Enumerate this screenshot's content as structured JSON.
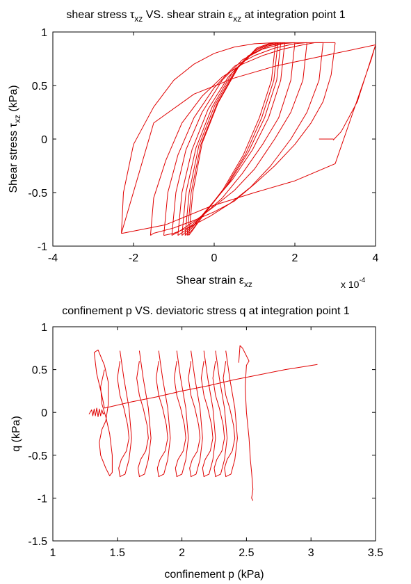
{
  "chart_data": [
    {
      "type": "line",
      "title": {
        "text": "shear stress τ",
        "sub": "xz",
        "mid": " VS. shear strain ε",
        "sub2": "xz",
        "tail": " at integration point 1"
      },
      "xlabel": {
        "text": "Shear strain ε",
        "sub": "xz"
      },
      "ylabel": {
        "text": "Shear stress τ",
        "sub": "xz",
        "tail": " (kPa)"
      },
      "xlim": [
        -4,
        4
      ],
      "ylim": [
        -1,
        1
      ],
      "xticks": [
        -4,
        -2,
        0,
        2,
        4
      ],
      "xtick_labels": [
        "-4",
        "-2",
        "0",
        "2",
        "4"
      ],
      "yticks": [
        -1,
        -0.5,
        0,
        0.5,
        1
      ],
      "ytick_labels": [
        "-1",
        "-0.5",
        "0",
        "0.5",
        "1"
      ],
      "x_multiplier": {
        "text": "x 10",
        "exp": "-4"
      },
      "grid": false,
      "legend": "none",
      "line_color": "#e00000",
      "series": [
        {
          "x": [
            2.72,
            2.95,
            2.85,
            2.6
          ],
          "y": [
            0.0,
            0.0,
            0.0,
            0.0
          ]
        },
        {
          "x": [
            2.95,
            3.15,
            3.55,
            4.0,
            3.0,
            1.5,
            0.5,
            -0.5,
            -1.5,
            -2.3,
            -2.27,
            -1.2,
            -0.1,
            1.0,
            2.0,
            3.0,
            3.9,
            4.0
          ],
          "y": [
            -0.01,
            0.07,
            0.35,
            0.88,
            0.8,
            0.68,
            0.57,
            0.42,
            0.15,
            -0.88,
            -0.88,
            -0.8,
            -0.63,
            -0.5,
            -0.39,
            -0.23,
            0.75,
            0.88
          ]
        },
        {
          "x": [
            -2.3,
            -2.25,
            -2.0,
            -1.5,
            -1.0,
            -0.5,
            0.0,
            0.5,
            1.0,
            1.5,
            2.0,
            2.5,
            3.0
          ],
          "y": [
            -0.88,
            -0.5,
            -0.05,
            0.3,
            0.55,
            0.7,
            0.8,
            0.86,
            0.89,
            0.9,
            0.9,
            0.9,
            0.9
          ]
        },
        {
          "x": [
            3.0,
            2.9,
            2.7,
            2.4,
            2.0,
            1.5,
            1.0,
            0.5,
            0.0,
            -0.5,
            -1.0,
            -1.5,
            -1.58
          ],
          "y": [
            0.9,
            0.6,
            0.35,
            0.15,
            -0.05,
            -0.25,
            -0.42,
            -0.58,
            -0.68,
            -0.76,
            -0.83,
            -0.88,
            -0.9
          ]
        },
        {
          "x": [
            -1.58,
            -1.5,
            -1.2,
            -0.8,
            -0.3,
            0.2,
            0.7,
            1.2,
            1.7,
            2.2,
            2.5,
            2.7
          ],
          "y": [
            -0.9,
            -0.55,
            -0.2,
            0.15,
            0.4,
            0.58,
            0.7,
            0.78,
            0.84,
            0.88,
            0.9,
            0.9
          ]
        },
        {
          "x": [
            2.7,
            2.6,
            2.3,
            1.9,
            1.4,
            0.9,
            0.4,
            -0.1,
            -0.6,
            -1.0,
            -1.25
          ],
          "y": [
            0.9,
            0.55,
            0.25,
            0.0,
            -0.25,
            -0.45,
            -0.6,
            -0.72,
            -0.82,
            -0.88,
            -0.9
          ]
        },
        {
          "x": [
            -1.25,
            -1.15,
            -0.9,
            -0.5,
            0.0,
            0.5,
            1.0,
            1.5,
            2.0,
            2.3
          ],
          "y": [
            -0.9,
            -0.5,
            -0.15,
            0.2,
            0.48,
            0.68,
            0.78,
            0.85,
            0.89,
            0.9
          ]
        },
        {
          "x": [
            2.3,
            2.2,
            1.9,
            1.5,
            1.0,
            0.5,
            0.0,
            -0.5,
            -0.9,
            -1.05
          ],
          "y": [
            0.9,
            0.55,
            0.25,
            0.0,
            -0.28,
            -0.48,
            -0.63,
            -0.77,
            -0.87,
            -0.9
          ]
        },
        {
          "x": [
            -1.05,
            -0.95,
            -0.7,
            -0.3,
            0.2,
            0.7,
            1.2,
            1.7,
            2.0
          ],
          "y": [
            -0.9,
            -0.5,
            -0.1,
            0.25,
            0.55,
            0.74,
            0.84,
            0.89,
            0.9
          ]
        },
        {
          "x": [
            2.0,
            1.9,
            1.6,
            1.2,
            0.7,
            0.2,
            -0.3,
            -0.7,
            -0.9
          ],
          "y": [
            0.9,
            0.55,
            0.2,
            -0.05,
            -0.32,
            -0.55,
            -0.72,
            -0.85,
            -0.9
          ]
        },
        {
          "x": [
            -0.9,
            -0.8,
            -0.55,
            -0.15,
            0.35,
            0.85,
            1.35,
            1.75
          ],
          "y": [
            -0.9,
            -0.5,
            -0.1,
            0.28,
            0.58,
            0.78,
            0.87,
            0.9
          ]
        },
        {
          "x": [
            1.75,
            1.65,
            1.35,
            0.95,
            0.45,
            -0.05,
            -0.5,
            -0.8
          ],
          "y": [
            0.9,
            0.55,
            0.2,
            -0.1,
            -0.38,
            -0.6,
            -0.8,
            -0.9
          ]
        },
        {
          "x": [
            -0.8,
            -0.7,
            -0.45,
            -0.05,
            0.45,
            0.95,
            1.4,
            1.65
          ],
          "y": [
            -0.9,
            -0.5,
            -0.08,
            0.3,
            0.62,
            0.8,
            0.88,
            0.9
          ]
        },
        {
          "x": [
            1.65,
            1.55,
            1.25,
            0.85,
            0.35,
            -0.15,
            -0.55,
            -0.72
          ],
          "y": [
            0.9,
            0.55,
            0.2,
            -0.12,
            -0.42,
            -0.65,
            -0.83,
            -0.9
          ]
        },
        {
          "x": [
            -0.72,
            -0.62,
            -0.38,
            0.02,
            0.52,
            1.0,
            1.4,
            1.58
          ],
          "y": [
            -0.9,
            -0.5,
            -0.06,
            0.32,
            0.64,
            0.82,
            0.89,
            0.9
          ]
        },
        {
          "x": [
            1.58,
            1.48,
            1.18,
            0.78,
            0.28,
            -0.2,
            -0.55,
            -0.67
          ],
          "y": [
            0.9,
            0.55,
            0.2,
            -0.14,
            -0.45,
            -0.68,
            -0.85,
            -0.9
          ]
        },
        {
          "x": [
            -0.67,
            -0.57,
            -0.33,
            0.07,
            0.57,
            1.05,
            1.4,
            1.52
          ],
          "y": [
            -0.9,
            -0.5,
            -0.05,
            0.33,
            0.66,
            0.84,
            0.89,
            0.9
          ]
        },
        {
          "x": [
            1.52,
            1.42,
            1.12,
            0.72,
            0.22,
            -0.25,
            -0.55,
            -0.63
          ],
          "y": [
            0.9,
            0.55,
            0.2,
            -0.15,
            -0.47,
            -0.7,
            -0.86,
            -0.9
          ]
        },
        {
          "x": [
            -0.63,
            -0.53,
            -0.3,
            0.1,
            0.6,
            1.05,
            1.35,
            1.48
          ],
          "y": [
            -0.9,
            -0.5,
            -0.04,
            0.34,
            0.67,
            0.85,
            0.89,
            0.9
          ]
        }
      ]
    },
    {
      "type": "line",
      "title": {
        "text": "confinement p VS. deviatoric stress q at integration point 1"
      },
      "xlabel": {
        "text": "confinement p (kPa)"
      },
      "ylabel": {
        "text": "q (kPa)"
      },
      "xlim": [
        1,
        3.5
      ],
      "ylim": [
        -1.5,
        1
      ],
      "xticks": [
        1,
        1.5,
        2,
        2.5,
        3,
        3.5
      ],
      "xtick_labels": [
        "1",
        "1.5",
        "2",
        "2.5",
        "3",
        "3.5"
      ],
      "yticks": [
        -1.5,
        -1,
        -0.5,
        0,
        0.5,
        1
      ],
      "ytick_labels": [
        "-1.5",
        "-1",
        "-0.5",
        "0",
        "0.5",
        "1"
      ],
      "grid": false,
      "legend": "none",
      "line_color": "#e00000",
      "series": [
        {
          "x": [
            1.28,
            1.3,
            1.31,
            1.32,
            1.33,
            1.34,
            1.35,
            1.36,
            1.37,
            1.38,
            1.39,
            1.4
          ],
          "y": [
            -0.02,
            0.03,
            -0.04,
            0.04,
            -0.04,
            0.05,
            -0.05,
            0.04,
            -0.04,
            0.03,
            -0.02,
            0.0
          ]
        },
        {
          "x": [
            1.4,
            1.38,
            1.34,
            1.32,
            1.35,
            1.4,
            1.43,
            1.43,
            1.41,
            1.38,
            1.36,
            1.37,
            1.41,
            1.44,
            1.46,
            1.46,
            1.44,
            1.41,
            1.38,
            1.37,
            1.4
          ],
          "y": [
            0.05,
            0.2,
            0.45,
            0.7,
            0.73,
            0.55,
            0.35,
            0.1,
            -0.1,
            -0.2,
            -0.35,
            -0.5,
            -0.65,
            -0.74,
            -0.7,
            -0.5,
            -0.25,
            -0.05,
            0.1,
            0.3,
            0.5
          ]
        },
        {
          "x": [
            1.52,
            1.5,
            1.52,
            1.55,
            1.58,
            1.59,
            1.57,
            1.53,
            1.51,
            1.52,
            1.56,
            1.59,
            1.61,
            1.59,
            1.55,
            1.52
          ],
          "y": [
            0.6,
            0.4,
            0.2,
            0.05,
            -0.15,
            -0.3,
            -0.45,
            -0.55,
            -0.65,
            -0.75,
            -0.72,
            -0.55,
            -0.3,
            0.05,
            0.4,
            0.72
          ]
        },
        {
          "x": [
            1.67,
            1.65,
            1.67,
            1.7,
            1.73,
            1.74,
            1.72,
            1.68,
            1.66,
            1.67,
            1.71,
            1.74,
            1.76,
            1.74,
            1.7,
            1.67
          ],
          "y": [
            0.6,
            0.4,
            0.2,
            0.05,
            -0.15,
            -0.3,
            -0.45,
            -0.55,
            -0.65,
            -0.75,
            -0.72,
            -0.55,
            -0.3,
            0.05,
            0.4,
            0.72
          ]
        },
        {
          "x": [
            1.82,
            1.8,
            1.82,
            1.85,
            1.88,
            1.89,
            1.87,
            1.83,
            1.81,
            1.82,
            1.86,
            1.89,
            1.91,
            1.89,
            1.85,
            1.82
          ],
          "y": [
            0.6,
            0.4,
            0.2,
            0.05,
            -0.15,
            -0.3,
            -0.45,
            -0.55,
            -0.65,
            -0.75,
            -0.72,
            -0.55,
            -0.3,
            0.05,
            0.4,
            0.72
          ]
        },
        {
          "x": [
            1.96,
            1.94,
            1.96,
            1.99,
            2.02,
            2.03,
            2.01,
            1.97,
            1.95,
            1.96,
            2.0,
            2.03,
            2.05,
            2.03,
            1.99,
            1.96
          ],
          "y": [
            0.6,
            0.4,
            0.2,
            0.05,
            -0.15,
            -0.3,
            -0.45,
            -0.55,
            -0.65,
            -0.75,
            -0.72,
            -0.55,
            -0.3,
            0.05,
            0.4,
            0.72
          ]
        },
        {
          "x": [
            2.07,
            2.05,
            2.07,
            2.1,
            2.13,
            2.14,
            2.12,
            2.08,
            2.06,
            2.07,
            2.11,
            2.14,
            2.16,
            2.14,
            2.1,
            2.07
          ],
          "y": [
            0.6,
            0.4,
            0.2,
            0.05,
            -0.15,
            -0.3,
            -0.45,
            -0.55,
            -0.65,
            -0.75,
            -0.72,
            -0.55,
            -0.3,
            0.05,
            0.4,
            0.72
          ]
        },
        {
          "x": [
            2.17,
            2.15,
            2.17,
            2.2,
            2.23,
            2.24,
            2.22,
            2.18,
            2.16,
            2.17,
            2.21,
            2.24,
            2.26,
            2.24,
            2.2,
            2.17
          ],
          "y": [
            0.6,
            0.4,
            0.2,
            0.05,
            -0.15,
            -0.3,
            -0.45,
            -0.55,
            -0.65,
            -0.75,
            -0.72,
            -0.55,
            -0.3,
            0.05,
            0.4,
            0.72
          ]
        },
        {
          "x": [
            2.26,
            2.24,
            2.26,
            2.29,
            2.32,
            2.33,
            2.31,
            2.27,
            2.25,
            2.26,
            2.3,
            2.33,
            2.35,
            2.33,
            2.29,
            2.26
          ],
          "y": [
            0.6,
            0.4,
            0.2,
            0.05,
            -0.15,
            -0.3,
            -0.45,
            -0.55,
            -0.65,
            -0.75,
            -0.72,
            -0.55,
            -0.3,
            0.05,
            0.4,
            0.72
          ]
        },
        {
          "x": [
            2.34,
            2.32,
            2.34,
            2.37,
            2.4,
            2.41,
            2.39,
            2.35,
            2.33,
            2.34,
            2.38,
            2.41,
            2.43,
            2.41,
            2.37,
            2.34
          ],
          "y": [
            0.6,
            0.4,
            0.2,
            0.05,
            -0.15,
            -0.3,
            -0.45,
            -0.55,
            -0.65,
            -0.75,
            -0.72,
            -0.55,
            -0.3,
            0.05,
            0.4,
            0.72
          ]
        },
        {
          "x": [
            2.44,
            2.45,
            2.47,
            2.52,
            2.5,
            2.49,
            2.5,
            2.52,
            2.53,
            2.54,
            2.55,
            2.54,
            2.55
          ],
          "y": [
            0.58,
            0.78,
            0.75,
            0.6,
            0.55,
            0.3,
            0.0,
            -0.3,
            -0.55,
            -0.7,
            -0.9,
            -1.0,
            -1.03
          ]
        },
        {
          "x": [
            1.4,
            1.6,
            1.8,
            2.0,
            2.2,
            2.4,
            2.6,
            2.8,
            3.05
          ],
          "y": [
            0.05,
            0.12,
            0.18,
            0.25,
            0.31,
            0.38,
            0.44,
            0.5,
            0.56
          ]
        }
      ]
    }
  ]
}
